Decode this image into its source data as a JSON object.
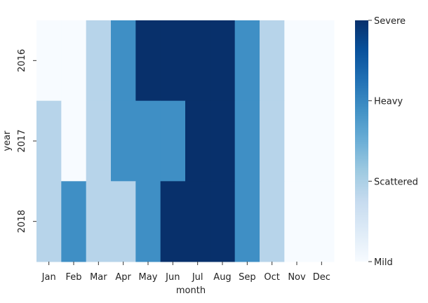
{
  "chart_data": {
    "type": "heatmap",
    "title": "",
    "xlabel": "month",
    "ylabel": "year",
    "x_categories": [
      "Jan",
      "Feb",
      "Mar",
      "Apr",
      "May",
      "Jun",
      "Jul",
      "Aug",
      "Sep",
      "Oct",
      "Nov",
      "Dec"
    ],
    "y_categories": [
      "2016",
      "2017",
      "2018"
    ],
    "values": [
      [
        0,
        0,
        1,
        2,
        3,
        3,
        3,
        3,
        2,
        1,
        0,
        0
      ],
      [
        1,
        0,
        1,
        2,
        2,
        2,
        3,
        3,
        2,
        1,
        0,
        0
      ],
      [
        1,
        2,
        1,
        1,
        2,
        3,
        3,
        3,
        2,
        1,
        0,
        0
      ]
    ],
    "value_range": [
      0,
      3
    ],
    "colorbar": {
      "ticks": [
        0,
        1,
        2,
        3
      ],
      "tick_labels": [
        "Mild",
        "Scattered",
        "Heavy",
        "Severe"
      ]
    },
    "colormap": {
      "name": "Blues",
      "level_colors": [
        "#f7fbff",
        "#b7d4ea",
        "#3f8fc5",
        "#08306b"
      ],
      "gradient_stops": [
        "#f7fbff",
        "#deebf7",
        "#c6dbef",
        "#9ecae1",
        "#6baed6",
        "#4292c6",
        "#2171b5",
        "#08519c",
        "#08306b"
      ]
    }
  }
}
